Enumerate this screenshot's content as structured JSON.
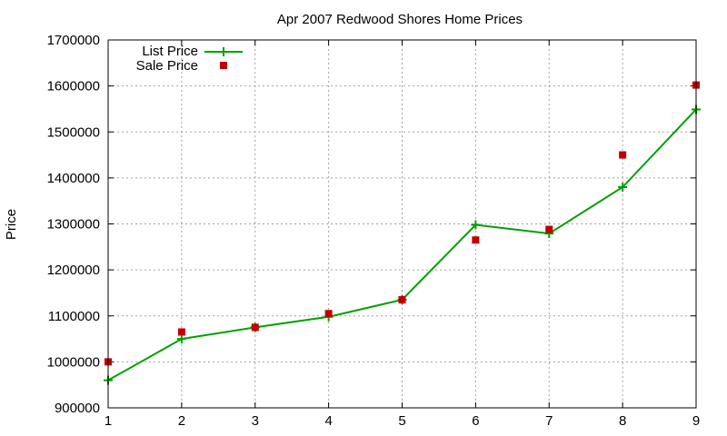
{
  "chart_data": {
    "type": "line",
    "title": "Apr 2007 Redwood Shores Home Prices",
    "xlabel": "",
    "ylabel": "Price",
    "x": [
      1,
      2,
      3,
      4,
      5,
      6,
      7,
      8,
      9
    ],
    "xlim": [
      1,
      9
    ],
    "ylim": [
      900000,
      1700000
    ],
    "x_ticks": [
      "1",
      "2",
      "3",
      "4",
      "5",
      "6",
      "7",
      "8",
      "9"
    ],
    "y_ticks": [
      "900000",
      "1000000",
      "1100000",
      "1200000",
      "1300000",
      "1400000",
      "1500000",
      "1600000",
      "1700000"
    ],
    "grid": true,
    "legend_position": "top-left",
    "series": [
      {
        "name": "List Price",
        "style": "line-with-plus-markers",
        "color": "#00a000",
        "values": [
          960000,
          1050000,
          1075000,
          1098000,
          1135000,
          1298000,
          1279000,
          1380000,
          1549000
        ]
      },
      {
        "name": "Sale Price",
        "style": "square-markers",
        "color": "#c00000",
        "values": [
          1000000,
          1065000,
          1075000,
          1105000,
          1135000,
          1265000,
          1288000,
          1450000,
          1602000
        ]
      }
    ]
  }
}
